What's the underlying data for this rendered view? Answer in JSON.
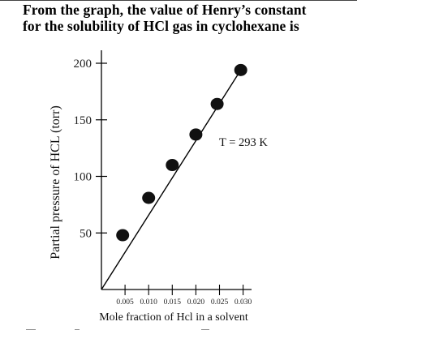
{
  "question": {
    "line1": "From the graph, the value of Henry’s constant",
    "line2": "for the solubility  of HCl gas in cyclohexane  is"
  },
  "chart_data": {
    "type": "line",
    "title": "",
    "xlabel": "Mole fraction of Hcl in a solvent",
    "ylabel": "Partial pressure of HCL (torr)",
    "annotation": "T = 293 K",
    "xlim": [
      0,
      0.033
    ],
    "ylim": [
      0,
      210
    ],
    "x_ticks": [
      0.005,
      0.01,
      0.015,
      0.02,
      0.025,
      0.03
    ],
    "x_tick_labels": [
      "0.005",
      "0.010",
      "0.015",
      "0.020",
      "0.025",
      "0.030"
    ],
    "y_ticks": [
      50,
      100,
      150,
      200
    ],
    "y_tick_labels": [
      "50",
      "100",
      "150",
      "200"
    ],
    "series": [
      {
        "x": [
          0.0045,
          0.01,
          0.015,
          0.02,
          0.0245,
          0.0295
        ],
        "y": [
          48,
          81,
          110,
          137,
          164,
          194
        ]
      }
    ],
    "fit_line": {
      "x": [
        0,
        0.0295
      ],
      "y": [
        0,
        194
      ]
    },
    "grid": false,
    "line_color": "#000000",
    "marker_color": "#111111"
  }
}
